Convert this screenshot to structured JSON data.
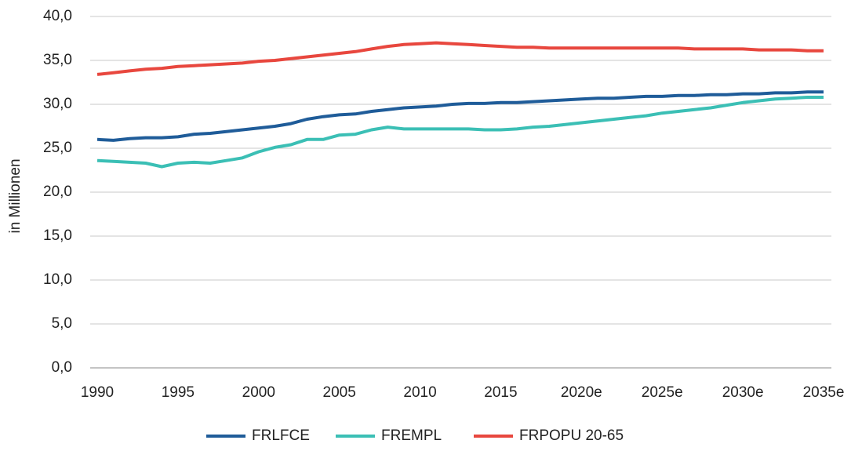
{
  "chart_data": {
    "type": "line",
    "y_label": "in Millionen",
    "categories": [
      "1990",
      null,
      null,
      null,
      null,
      "1995",
      null,
      null,
      null,
      null,
      "2000",
      null,
      null,
      null,
      null,
      "2005",
      null,
      null,
      null,
      null,
      "2010",
      null,
      null,
      null,
      null,
      "2015",
      null,
      null,
      null,
      null,
      "2020e",
      null,
      null,
      null,
      null,
      "2025e",
      null,
      null,
      null,
      null,
      "2030e",
      null,
      null,
      null,
      null,
      "2035e"
    ],
    "series": [
      {
        "name": "FRLFCE",
        "color": "#1f5c99",
        "values": [
          26.0,
          25.9,
          26.1,
          26.2,
          26.2,
          26.3,
          26.6,
          26.7,
          26.9,
          27.1,
          27.3,
          27.5,
          27.8,
          28.3,
          28.6,
          28.8,
          28.9,
          29.2,
          29.4,
          29.6,
          29.7,
          29.8,
          30.0,
          30.1,
          30.1,
          30.2,
          30.2,
          30.3,
          30.4,
          30.5,
          30.6,
          30.7,
          30.7,
          30.8,
          30.9,
          30.9,
          31.0,
          31.0,
          31.1,
          31.1,
          31.2,
          31.2,
          31.3,
          31.3,
          31.4,
          31.4
        ]
      },
      {
        "name": "FREMPL",
        "color": "#3bbfb5",
        "values": [
          23.6,
          23.5,
          23.4,
          23.3,
          22.9,
          23.3,
          23.4,
          23.3,
          23.6,
          23.9,
          24.6,
          25.1,
          25.4,
          26.0,
          26.0,
          26.5,
          26.6,
          27.1,
          27.4,
          27.2,
          27.2,
          27.2,
          27.2,
          27.2,
          27.1,
          27.1,
          27.2,
          27.4,
          27.5,
          27.7,
          27.9,
          28.1,
          28.3,
          28.5,
          28.7,
          29.0,
          29.2,
          29.4,
          29.6,
          29.9,
          30.2,
          30.4,
          30.6,
          30.7,
          30.8,
          30.8
        ]
      },
      {
        "name": "FRPOPU 20-65",
        "color": "#e8473e",
        "values": [
          33.4,
          33.6,
          33.8,
          34.0,
          34.1,
          34.3,
          34.4,
          34.5,
          34.6,
          34.7,
          34.9,
          35.0,
          35.2,
          35.4,
          35.6,
          35.8,
          36.0,
          36.3,
          36.6,
          36.8,
          36.9,
          37.0,
          36.9,
          36.8,
          36.7,
          36.6,
          36.5,
          36.5,
          36.4,
          36.4,
          36.4,
          36.4,
          36.4,
          36.4,
          36.4,
          36.4,
          36.4,
          36.3,
          36.3,
          36.3,
          36.3,
          36.2,
          36.2,
          36.2,
          36.1,
          36.1
        ]
      }
    ],
    "ylim": [
      0,
      40
    ],
    "yticks": [
      {
        "value": 0,
        "label": "0,0"
      },
      {
        "value": 5,
        "label": "5,0"
      },
      {
        "value": 10,
        "label": "10,0"
      },
      {
        "value": 15,
        "label": "15,0"
      },
      {
        "value": 20,
        "label": "20,0"
      },
      {
        "value": 25,
        "label": "25,0"
      },
      {
        "value": 30,
        "label": "30,0"
      },
      {
        "value": 35,
        "label": "35,0"
      },
      {
        "value": 40,
        "label": "40,0"
      }
    ],
    "grid": true,
    "legend": "bottom"
  }
}
